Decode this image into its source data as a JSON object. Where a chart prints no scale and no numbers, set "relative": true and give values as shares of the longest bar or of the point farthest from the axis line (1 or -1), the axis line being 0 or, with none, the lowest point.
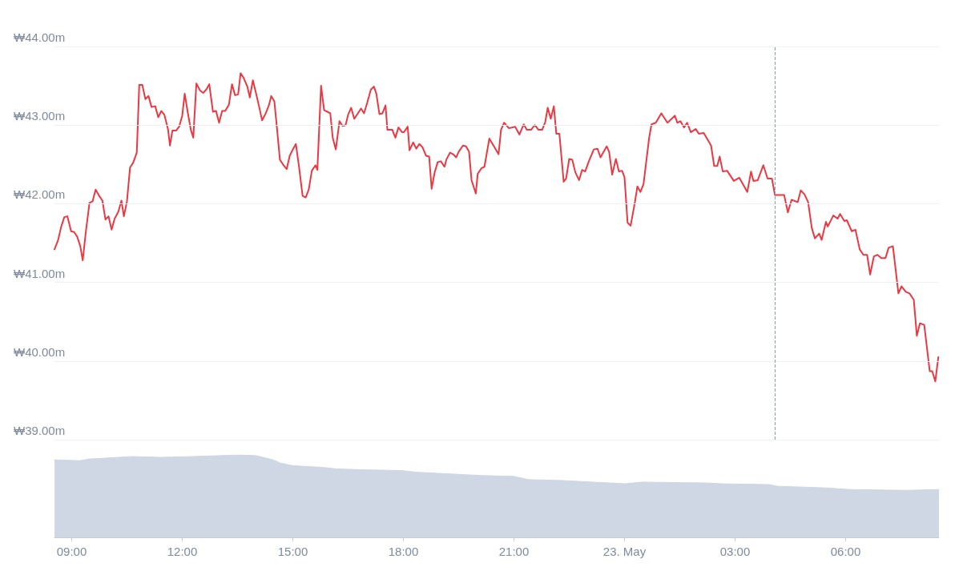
{
  "chart_data": [
    {
      "type": "line",
      "color": "#ea3943",
      "grid": "y",
      "tick_labels": "y",
      "xlim": [
        "--05-22T08:32",
        "--05-23T08:32"
      ],
      "ylim": [
        39,
        44
      ],
      "yticks": [
        {
          "value": 39,
          "label": "₩39.00m"
        },
        {
          "value": 40,
          "label": "₩40.00m"
        },
        {
          "value": 41,
          "label": "₩41.00m"
        },
        {
          "value": 42,
          "label": "₩42.00m"
        },
        {
          "value": 43,
          "label": "₩43.00m"
        },
        {
          "value": 44,
          "label": "₩44.00m"
        }
      ],
      "ref_lines": [
        {
          "axis": "x",
          "value": "--05-23T04:05",
          "color": "#8f9bb3",
          "line_style": "dashed"
        }
      ],
      "x": [
        "--05-22T08:32",
        "--05-22T08:38",
        "--05-22T08:43",
        "--05-22T08:48",
        "--05-22T08:53",
        "--05-22T08:59",
        "--05-22T09:04",
        "--05-22T09:09",
        "--05-22T09:14",
        "--05-22T09:18",
        "--05-22T09:23",
        "--05-22T09:29",
        "--05-22T09:34",
        "--05-22T09:39",
        "--05-22T09:44",
        "--05-22T09:50",
        "--05-22T09:55",
        "--05-22T10:00",
        "--05-22T10:05",
        "--05-22T10:10",
        "--05-22T10:16",
        "--05-22T10:21",
        "--05-22T10:25",
        "--05-22T10:30",
        "--05-22T10:35",
        "--05-22T10:40",
        "--05-22T10:46",
        "--05-22T10:50",
        "--05-22T10:55",
        "--05-22T11:00",
        "--05-22T11:05",
        "--05-22T11:10",
        "--05-22T11:16",
        "--05-22T11:21",
        "--05-22T11:26",
        "--05-22T11:31",
        "--05-22T11:37",
        "--05-22T11:40",
        "--05-22T11:44",
        "--05-22T11:50",
        "--05-22T11:55",
        "--05-22T12:00",
        "--05-22T12:04",
        "--05-22T12:09",
        "--05-22T12:14",
        "--05-22T12:18",
        "--05-22T12:23",
        "--05-22T12:29",
        "--05-22T12:34",
        "--05-22T12:39",
        "--05-22T12:44",
        "--05-22T12:50",
        "--05-22T12:55",
        "--05-22T13:00",
        "--05-22T13:05",
        "--05-22T13:10",
        "--05-22T13:16",
        "--05-22T13:21",
        "--05-22T13:26",
        "--05-22T13:31",
        "--05-22T13:35",
        "--05-22T13:40",
        "--05-22T13:46",
        "--05-22T13:50",
        "--05-22T13:55",
        "--05-22T14:00",
        "--05-22T14:05",
        "--05-22T14:10",
        "--05-22T14:16",
        "--05-22T14:21",
        "--05-22T14:25",
        "--05-22T14:30",
        "--05-22T14:34",
        "--05-22T14:39",
        "--05-22T14:44",
        "--05-22T14:50",
        "--05-22T14:55",
        "--05-22T15:00",
        "--05-22T15:05",
        "--05-22T15:10",
        "--05-22T15:16",
        "--05-22T15:21",
        "--05-22T15:26",
        "--05-22T15:31",
        "--05-22T15:37",
        "--05-22T15:40",
        "--05-22T15:46",
        "--05-22T15:51",
        "--05-22T15:56",
        "--05-22T16:01",
        "--05-22T16:05",
        "--05-22T16:10",
        "--05-22T16:16",
        "--05-22T16:21",
        "--05-22T16:26",
        "--05-22T16:30",
        "--05-22T16:35",
        "--05-22T16:40",
        "--05-22T16:46",
        "--05-22T16:51",
        "--05-22T16:56",
        "--05-22T17:01",
        "--05-22T17:07",
        "--05-22T17:12",
        "--05-22T17:16",
        "--05-22T17:21",
        "--05-22T17:26",
        "--05-22T17:31",
        "--05-22T17:34",
        "--05-22T17:42",
        "--05-22T17:47",
        "--05-22T17:52",
        "--05-22T17:58",
        "--05-22T18:01",
        "--05-22T18:07",
        "--05-22T18:10",
        "--05-22T18:16",
        "--05-22T18:21",
        "--05-22T18:26",
        "--05-22T18:31",
        "--05-22T18:37",
        "--05-22T18:42",
        "--05-22T18:46",
        "--05-22T18:51",
        "--05-22T18:56",
        "--05-22T19:01",
        "--05-22T19:07",
        "--05-22T19:10",
        "--05-22T19:16",
        "--05-22T19:21",
        "--05-22T19:26",
        "--05-22T19:30",
        "--05-22T19:37",
        "--05-22T19:42",
        "--05-22T19:47",
        "--05-22T19:51",
        "--05-22T19:58",
        "--05-22T20:01",
        "--05-22T20:07",
        "--05-22T20:12",
        "--05-22T20:20",
        "--05-22T20:35",
        "--05-22T20:39",
        "--05-22T20:44",
        "--05-22T20:52",
        "--05-22T21:02",
        "--05-22T21:09",
        "--05-22T21:16",
        "--05-22T21:21",
        "--05-22T21:28",
        "--05-22T21:34",
        "--05-22T21:40",
        "--05-22T21:46",
        "--05-22T21:51",
        "--05-22T21:55",
        "--05-22T22:00",
        "--05-22T22:05",
        "--05-22T22:09",
        "--05-22T22:14",
        "--05-22T22:21",
        "--05-22T22:25",
        "--05-22T22:30",
        "--05-22T22:35",
        "--05-22T22:40",
        "--05-22T22:46",
        "--05-22T22:51",
        "--05-22T22:56",
        "--05-22T23:02",
        "--05-22T23:10",
        "--05-22T23:16",
        "--05-22T23:21",
        "--05-22T23:31",
        "--05-22T23:35",
        "--05-22T23:40",
        "--05-22T23:46",
        "--05-22T23:51",
        "--05-22T23:56",
        "--05-23T00:00",
        "--05-23T00:05",
        "--05-23T00:10",
        "--05-23T00:17",
        "--05-23T00:21",
        "--05-23T00:26",
        "--05-23T00:31",
        "--05-23T00:40",
        "--05-23T00:44",
        "--05-23T00:51",
        "--05-23T01:00",
        "--05-23T01:10",
        "--05-23T01:22",
        "--05-23T01:26",
        "--05-23T01:31",
        "--05-23T01:37",
        "--05-23T01:42",
        "--05-23T01:48",
        "--05-23T01:56",
        "--05-23T02:01",
        "--05-23T02:09",
        "--05-23T02:21",
        "--05-23T02:26",
        "--05-23T02:31",
        "--05-23T02:35",
        "--05-23T02:40",
        "--05-23T02:47",
        "--05-23T02:58",
        "--05-23T03:07",
        "--05-23T03:20",
        "--05-23T03:26",
        "--05-23T03:30",
        "--05-23T03:37",
        "--05-23T03:46",
        "--05-23T03:53",
        "--05-23T04:00",
        "--05-23T04:05",
        "--05-23T04:20",
        "--05-23T04:26",
        "--05-23T04:32",
        "--05-23T04:42",
        "--05-23T04:47",
        "--05-23T04:53",
        "--05-23T04:59",
        "--05-23T05:05",
        "--05-23T05:10",
        "--05-23T05:17",
        "--05-23T05:21",
        "--05-23T05:28",
        "--05-23T05:31",
        "--05-23T05:40",
        "--05-23T05:47",
        "--05-23T05:51",
        "--05-23T05:58",
        "--05-23T06:02",
        "--05-23T06:10",
        "--05-23T06:16",
        "--05-23T06:23",
        "--05-23T06:29",
        "--05-23T06:35",
        "--05-23T06:40",
        "--05-23T06:46",
        "--05-23T06:52",
        "--05-23T06:58",
        "--05-23T07:05",
        "--05-23T07:10",
        "--05-23T07:17",
        "--05-23T07:26",
        "--05-23T07:31",
        "--05-23T07:38",
        "--05-23T07:44",
        "--05-23T07:51",
        "--05-23T07:56",
        "--05-23T08:01",
        "--05-23T08:08",
        "--05-23T08:17",
        "--05-23T08:21",
        "--05-23T08:26",
        "--05-23T08:31"
      ],
      "values": [
        41.42,
        41.54,
        41.71,
        41.83,
        41.84,
        41.65,
        41.64,
        41.58,
        41.46,
        41.28,
        41.64,
        42.01,
        42.03,
        42.18,
        42.11,
        42.04,
        41.8,
        41.84,
        41.67,
        41.81,
        41.9,
        42.04,
        41.84,
        42.03,
        42.46,
        42.52,
        42.65,
        43.51,
        43.51,
        43.33,
        43.37,
        43.23,
        43.24,
        43.1,
        43.18,
        43.13,
        42.94,
        42.74,
        42.93,
        42.93,
        42.98,
        43.12,
        43.4,
        43.16,
        42.94,
        42.84,
        43.53,
        43.44,
        43.41,
        43.45,
        43.52,
        43.17,
        43.18,
        43.03,
        43.18,
        43.18,
        43.26,
        43.52,
        43.38,
        43.39,
        43.66,
        43.6,
        43.49,
        43.35,
        43.57,
        43.41,
        43.24,
        43.06,
        43.15,
        43.25,
        43.37,
        43.3,
        42.98,
        42.56,
        42.5,
        42.44,
        42.61,
        42.69,
        42.76,
        42.48,
        42.1,
        42.08,
        42.18,
        42.42,
        42.49,
        42.43,
        43.5,
        43.19,
        43.17,
        43.15,
        42.84,
        42.69,
        43.05,
        42.99,
        43,
        43.13,
        43.22,
        43.08,
        43.15,
        43.21,
        43.15,
        43.28,
        43.45,
        43.49,
        43.4,
        43.14,
        43.15,
        43.25,
        42.94,
        42.94,
        42.84,
        42.97,
        42.91,
        42.91,
        42.98,
        42.68,
        42.78,
        42.7,
        42.76,
        42.72,
        42.61,
        42.6,
        42.19,
        42.4,
        42.53,
        42.54,
        42.47,
        42.56,
        42.65,
        42.63,
        42.59,
        42.66,
        42.74,
        42.73,
        42.66,
        42.3,
        42.13,
        42.38,
        42.45,
        42.47,
        42.83,
        42.63,
        42.94,
        43.03,
        42.96,
        42.98,
        42.88,
        43.01,
        42.94,
        42.94,
        43,
        42.94,
        42.94,
        43.04,
        43.22,
        43.08,
        43.24,
        42.89,
        42.89,
        42.28,
        42.32,
        42.57,
        42.56,
        42.4,
        42.3,
        42.43,
        42.41,
        42.54,
        42.69,
        42.7,
        42.59,
        42.73,
        42.66,
        42.37,
        42.57,
        42.41,
        42.42,
        42.34,
        41.76,
        41.72,
        42.02,
        42.22,
        42.15,
        42.25,
        42.83,
        43.01,
        43.03,
        43.15,
        43.03,
        43.12,
        43.03,
        43.05,
        42.97,
        43.03,
        42.91,
        42.95,
        42.89,
        42.9,
        42.74,
        42.48,
        42.48,
        42.6,
        42.41,
        42.42,
        42.29,
        42.33,
        42.15,
        42.41,
        42.29,
        42.3,
        42.49,
        42.32,
        42.32,
        42.11,
        42.11,
        41.89,
        42.05,
        42.02,
        42.17,
        42.12,
        42.02,
        41.69,
        41.56,
        41.62,
        41.54,
        41.77,
        41.71,
        41.85,
        41.81,
        41.87,
        41.78,
        41.79,
        41.65,
        41.67,
        41.42,
        41.35,
        41.35,
        41.1,
        41.33,
        41.35,
        41.31,
        41.31,
        41.44,
        41.46,
        40.86,
        40.95,
        40.88,
        40.86,
        40.78,
        40.32,
        40.48,
        40.46,
        39.87,
        39.87,
        39.74,
        40.05
      ]
    },
    {
      "type": "area",
      "relative": true,
      "color": "#cfd6e4",
      "tick_labels": "x",
      "xlim": [
        "--05-22T08:32",
        "--05-23T08:32"
      ],
      "xticks": [
        {
          "value": "--05-22T09:00",
          "label": "09:00"
        },
        {
          "value": "--05-22T12:00",
          "label": "12:00"
        },
        {
          "value": "--05-22T15:00",
          "label": "15:00"
        },
        {
          "value": "--05-22T18:00",
          "label": "18:00"
        },
        {
          "value": "--05-22T21:00",
          "label": "21:00"
        },
        {
          "value": "--05-23T00:00",
          "label": "23. May"
        },
        {
          "value": "--05-23T03:00",
          "label": "03:00"
        },
        {
          "value": "--05-23T06:00",
          "label": "06:00"
        }
      ],
      "x": [
        "--05-22T08:32",
        "--05-22T09:14",
        "--05-22T09:28",
        "--05-22T10:39",
        "--05-22T11:25",
        "--05-22T12:17",
        "--05-22T13:35",
        "--05-22T14:01",
        "--05-22T14:28",
        "--05-22T14:40",
        "--05-22T15:00",
        "--05-22T15:46",
        "--05-22T16:12",
        "--05-22T16:51",
        "--05-22T17:56",
        "--05-22T18:22",
        "--05-22T19:14",
        "--05-22T20:07",
        "--05-22T20:59",
        "--05-22T21:25",
        "--05-22T22:17",
        "--05-22T23:09",
        "--05-23T00:01",
        "--05-23T00:28",
        "--05-23T02:12",
        "--05-23T02:38",
        "--05-23T03:56",
        "--05-23T04:09",
        "--05-23T05:28",
        "--05-23T06:07",
        "--05-23T07:38",
        "--05-23T08:32"
      ],
      "values": [
        0.94,
        0.93,
        0.95,
        0.98,
        0.97,
        0.98,
        1,
        0.99,
        0.94,
        0.9,
        0.87,
        0.85,
        0.83,
        0.82,
        0.81,
        0.79,
        0.77,
        0.75,
        0.74,
        0.7,
        0.69,
        0.67,
        0.65,
        0.67,
        0.66,
        0.65,
        0.64,
        0.62,
        0.6,
        0.58,
        0.57,
        0.58
      ]
    }
  ]
}
